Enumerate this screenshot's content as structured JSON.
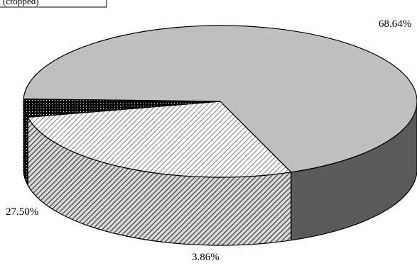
{
  "chart_data": {
    "type": "pie",
    "three_d": true,
    "title": "",
    "values": [
      68.64,
      27.5,
      3.86
    ],
    "data_labels": [
      "68.64%",
      "27.50%",
      "3.86%"
    ],
    "legend": "none",
    "slices": [
      {
        "value": 68.64,
        "label": "68.64%",
        "top_color": "#c0c0c0",
        "side_color": "#5a5a5a",
        "pattern": "solid"
      },
      {
        "value": 27.5,
        "label": "27.50%",
        "top_color": "#ffffff",
        "side_color": "#8c8c8c",
        "pattern": "diagonal-hatch"
      },
      {
        "value": 3.86,
        "label": "3.86%",
        "top_color": "#000000",
        "side_color": "#000000",
        "pattern": "dots"
      }
    ]
  },
  "header": {
    "title": "(cropped)"
  }
}
